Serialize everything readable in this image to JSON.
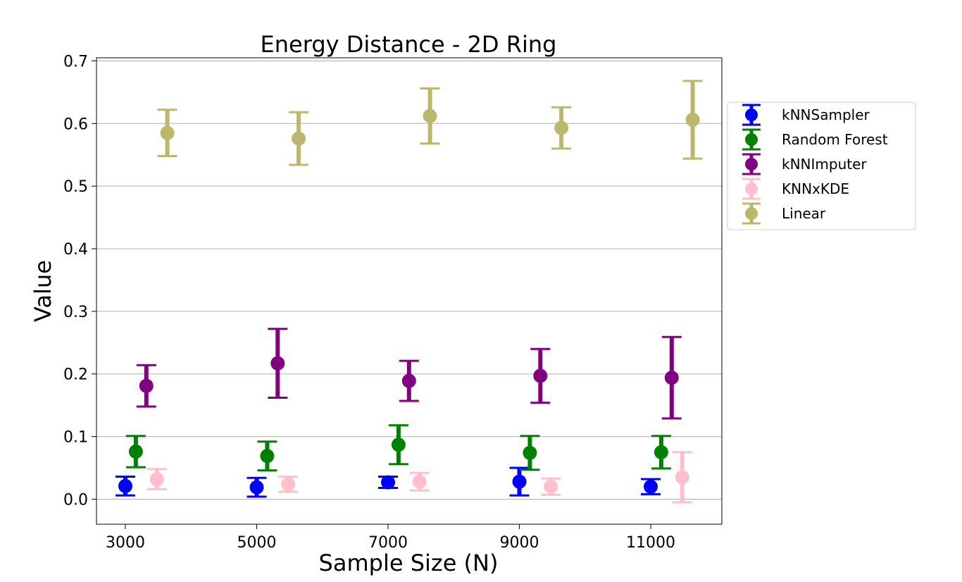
{
  "chart_data": {
    "type": "scatter",
    "title": "Energy Distance - 2D Ring",
    "xlabel": "Sample Size (N)",
    "ylabel": "Value",
    "categories": [
      "3000",
      "5000",
      "7000",
      "9000",
      "11000"
    ],
    "yticks": [
      "0.0",
      "0.1",
      "0.2",
      "0.3",
      "0.4",
      "0.5",
      "0.6",
      "0.7"
    ],
    "ylim": [
      -0.04,
      0.705
    ],
    "grid": "horizontal",
    "legend_position": "right",
    "series": [
      {
        "name": "kNNSampler",
        "color": "#0000ff",
        "offset": 0,
        "values": [
          0.021,
          0.019,
          0.027,
          0.028,
          0.02
        ],
        "errors": [
          0.015,
          0.015,
          0.009,
          0.022,
          0.012
        ]
      },
      {
        "name": "Random Forest",
        "color": "#008000",
        "offset": 1,
        "values": [
          0.076,
          0.069,
          0.087,
          0.074,
          0.075
        ],
        "errors": [
          0.025,
          0.023,
          0.031,
          0.027,
          0.026
        ]
      },
      {
        "name": "kNNImputer",
        "color": "#800080",
        "offset": 2,
        "values": [
          0.181,
          0.217,
          0.189,
          0.197,
          0.194
        ],
        "errors": [
          0.033,
          0.055,
          0.032,
          0.043,
          0.065
        ]
      },
      {
        "name": "KNNxKDE",
        "color": "#ffc0cb",
        "offset": 3,
        "values": [
          0.032,
          0.024,
          0.028,
          0.02,
          0.035
        ],
        "errors": [
          0.016,
          0.012,
          0.014,
          0.013,
          0.04
        ]
      },
      {
        "name": "Linear",
        "color": "#bdb76b",
        "offset": 4,
        "values": [
          0.585,
          0.576,
          0.612,
          0.593,
          0.606
        ],
        "errors": [
          0.037,
          0.042,
          0.044,
          0.033,
          0.062
        ]
      }
    ]
  }
}
